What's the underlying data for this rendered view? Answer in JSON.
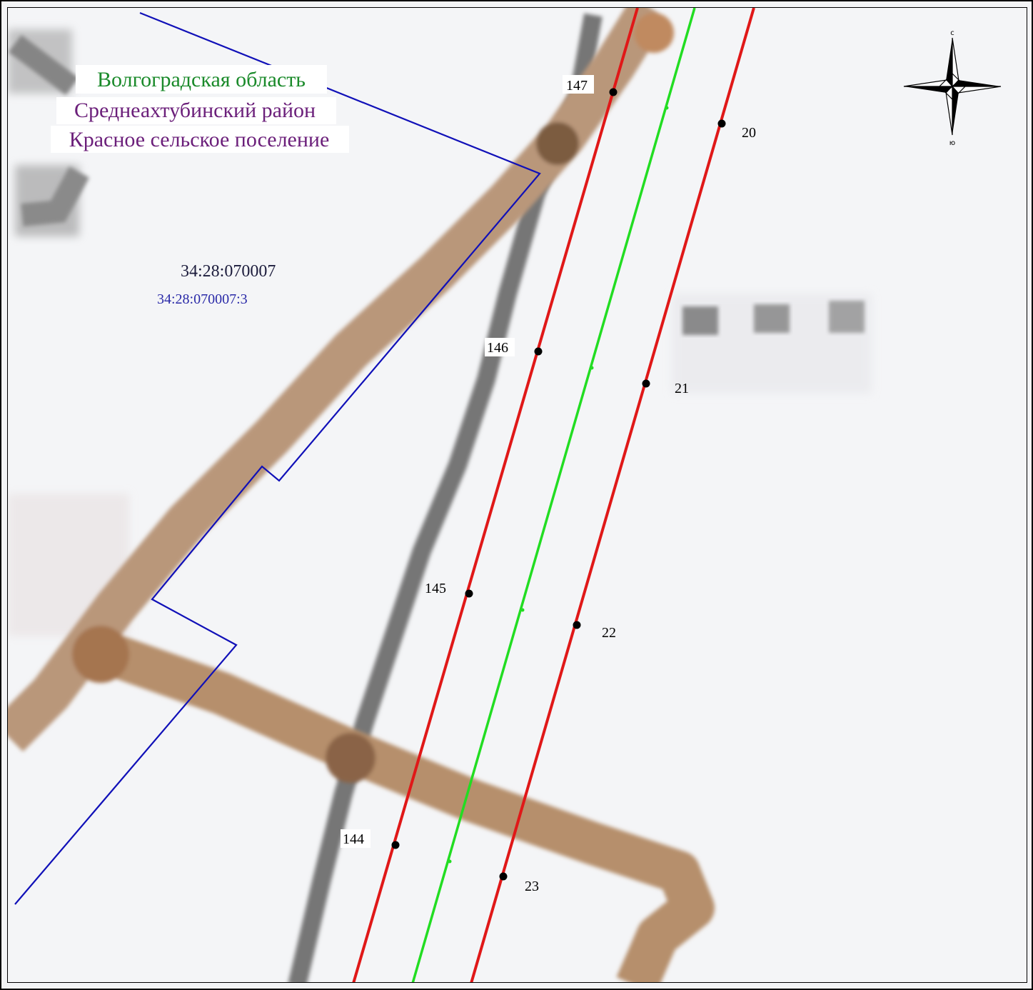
{
  "map": {
    "labels": {
      "region": "Волгоградская область",
      "district": "Среднеахтубинский район",
      "settlement": "Красное сельское поселение",
      "quarter": "34:28:070007",
      "parcel": "34:28:070007:3"
    },
    "colors": {
      "region": "#1a8a2a",
      "district": "#6b1f7a",
      "settlement": "#6b1f7a",
      "quarter": "#1c1c3c",
      "parcel": "#2a2aa8",
      "boundary": "#1010b8",
      "red_line": "#e01818",
      "green_line": "#22dd22",
      "road": "#b39070",
      "track": "#7a7a7a"
    },
    "compass": {
      "north": "с",
      "south": "ю",
      "icon": "compass-rose-icon"
    },
    "points_left": [
      {
        "id": "147"
      },
      {
        "id": "146"
      },
      {
        "id": "145"
      },
      {
        "id": "144"
      }
    ],
    "points_right": [
      {
        "id": "20"
      },
      {
        "id": "21"
      },
      {
        "id": "22"
      },
      {
        "id": "23"
      }
    ]
  }
}
